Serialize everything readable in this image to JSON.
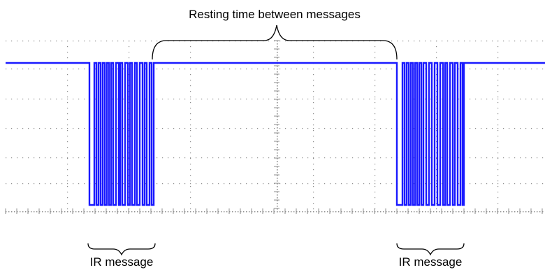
{
  "annotations": {
    "top_label": "Resting time between messages",
    "left_label": "IR message",
    "right_label": "IR message"
  },
  "colors": {
    "signal": "#1a1aff",
    "grid": "#8c8c8c",
    "text": "#000000"
  },
  "signal": {
    "levels": [
      "high",
      "low"
    ],
    "message_count": 2
  }
}
